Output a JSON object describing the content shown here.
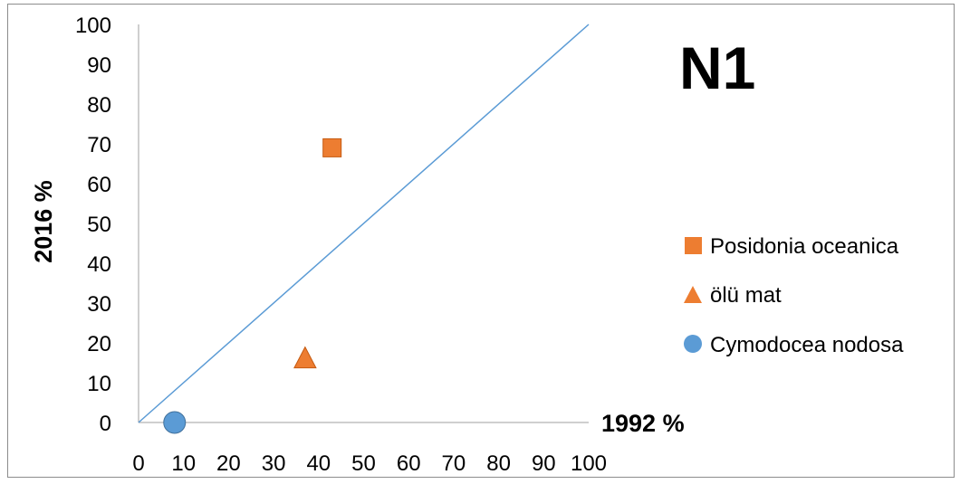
{
  "chart_data": {
    "type": "scatter",
    "title": "N1",
    "xlabel": "1992 %",
    "ylabel": "2016 %",
    "xlim": [
      0,
      100
    ],
    "ylim": [
      0,
      100
    ],
    "x_ticks": [
      "0",
      "10",
      "20",
      "30",
      "40",
      "50",
      "60",
      "70",
      "80",
      "90",
      "100"
    ],
    "y_ticks": [
      "0",
      "10",
      "20",
      "30",
      "40",
      "50",
      "60",
      "70",
      "80",
      "90",
      "100"
    ],
    "grid": false,
    "legend_position": "right",
    "reference_line": {
      "from": [
        0,
        0
      ],
      "to": [
        100,
        100
      ],
      "color": "#5b9bd5"
    },
    "series": [
      {
        "name": "Posidonia oceanica",
        "marker": "square",
        "color": "#ed7d31",
        "points": [
          {
            "x": 43,
            "y": 69
          }
        ]
      },
      {
        "name": "ölü mat",
        "marker": "triangle",
        "color": "#ed7d31",
        "points": [
          {
            "x": 37,
            "y": 16
          }
        ]
      },
      {
        "name": "Cymodocea nodosa",
        "marker": "circle",
        "color": "#5b9bd5",
        "points": [
          {
            "x": 8,
            "y": 0
          }
        ]
      }
    ]
  }
}
